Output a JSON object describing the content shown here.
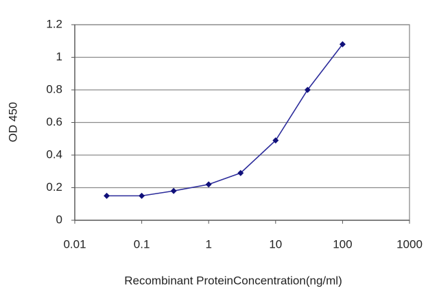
{
  "chart_data": {
    "type": "line",
    "x_label": "Recombinant ProteinConcentration(ng/ml)",
    "y_label": "OD 450",
    "x": [
      0.03,
      0.1,
      0.3,
      1,
      3,
      10,
      30,
      100
    ],
    "series": [
      {
        "color": "#2a2a9a",
        "values": [
          0.15,
          0.15,
          0.18,
          0.22,
          0.29,
          0.49,
          0.8,
          1.08
        ]
      }
    ],
    "xscale": "log",
    "xlim": [
      0.01,
      1000
    ],
    "xticks": [
      0.01,
      0.1,
      1,
      10,
      100,
      1000
    ],
    "ylim": [
      0,
      1.2
    ],
    "yticks": [
      0,
      0.2,
      0.4,
      0.6,
      0.8,
      1,
      1.2
    ],
    "grid": true
  }
}
